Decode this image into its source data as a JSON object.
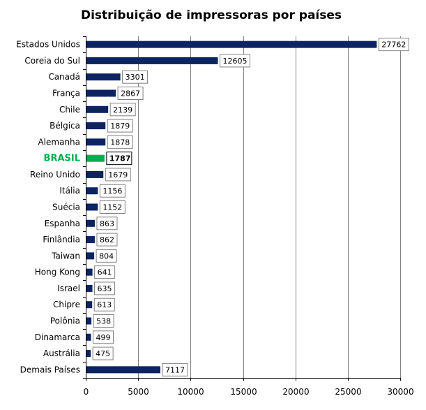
{
  "chart_data": {
    "type": "bar",
    "orientation": "horizontal",
    "title": "Distribuição de impressoras por países",
    "xlabel": "",
    "ylabel": "",
    "categories": [
      "Estados Unidos",
      "Coreia do Sul",
      "Canadá",
      "França",
      "Chile",
      "Bélgica",
      "Alemanha",
      "BRASIL",
      "Reino Unido",
      "Itália",
      "Suécia",
      "Espanha",
      "Finlândia",
      "Taiwan",
      "Hong Kong",
      "Israel",
      "Chipre",
      "Polônia",
      "Dinamarca",
      "Austrália",
      "Demais Países"
    ],
    "values": [
      27762,
      12605,
      3301,
      2867,
      2139,
      1879,
      1878,
      1787,
      1679,
      1156,
      1152,
      863,
      862,
      804,
      641,
      635,
      613,
      538,
      499,
      475,
      7117
    ],
    "data_labels": [
      "27762",
      "12605",
      "3301",
      "2867",
      "2139",
      "1879",
      "1878",
      "1787",
      "1679",
      "1156",
      "1152",
      "863",
      "862",
      "804",
      "641",
      "635",
      "613",
      "538",
      "499",
      "475",
      "7117"
    ],
    "highlight_category": "BRASIL",
    "xlim": [
      0,
      30000
    ],
    "xticks": [
      "0",
      "5000",
      "10000",
      "15000",
      "20000",
      "25000",
      "30000"
    ],
    "grid": "vertical",
    "legend": "none",
    "colors": {
      "bar": "#0c2461",
      "highlight": "#00b050",
      "grid": "#808080",
      "label_border": "#808080"
    }
  }
}
